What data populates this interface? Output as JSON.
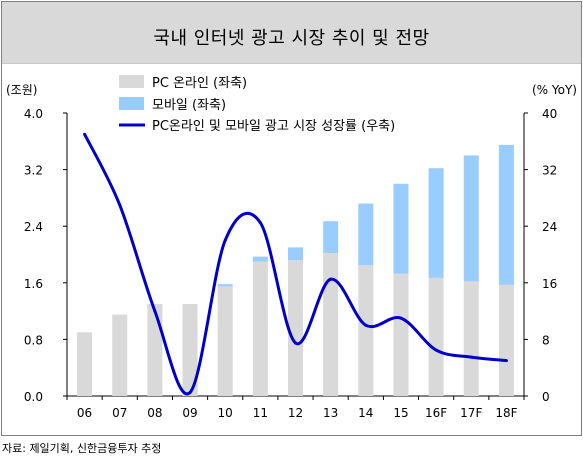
{
  "title": "국내 인터넷 광고 시장 추이 및 전망",
  "source": "자료: 제일기획, 신한금융투자 추정",
  "chart_data": {
    "type": "bar",
    "title": "국내 인터넷 광고 시장 추이 및 전망",
    "categories": [
      "06",
      "07",
      "08",
      "09",
      "10",
      "11",
      "12",
      "13",
      "14",
      "15",
      "16F",
      "17F",
      "18F"
    ],
    "stacked": true,
    "series": [
      {
        "name": "PC 온라인 (좌축)",
        "type": "bar",
        "axis": "left",
        "color": "#d9d9d9",
        "values": [
          0.9,
          1.15,
          1.3,
          1.3,
          1.55,
          1.9,
          1.92,
          2.02,
          1.85,
          1.73,
          1.67,
          1.62,
          1.57
        ]
      },
      {
        "name": "모바일 (좌축)",
        "type": "bar",
        "axis": "left",
        "color": "#99ccff",
        "values": [
          0,
          0,
          0,
          0,
          0.03,
          0.07,
          0.18,
          0.45,
          0.87,
          1.27,
          1.55,
          1.78,
          1.98
        ]
      },
      {
        "name": "PC온라인 및 모바일 광고 시장 성장률 (우축)",
        "type": "line",
        "axis": "right",
        "color": "#0000cc",
        "values": [
          37,
          27,
          12,
          0.5,
          22,
          24.5,
          7.5,
          16.5,
          10,
          11,
          6.5,
          5.5,
          5
        ]
      }
    ],
    "y_left": {
      "label": "(조원)",
      "ylim": [
        0,
        4
      ],
      "ticks": [
        "0.0",
        "0.8",
        "1.6",
        "2.4",
        "3.2",
        "4.0"
      ]
    },
    "y_right": {
      "label": "(% YoY)",
      "ylim": [
        0,
        40
      ],
      "ticks": [
        "0",
        "8",
        "16",
        "24",
        "32",
        "40"
      ]
    },
    "legend": "top-left"
  }
}
